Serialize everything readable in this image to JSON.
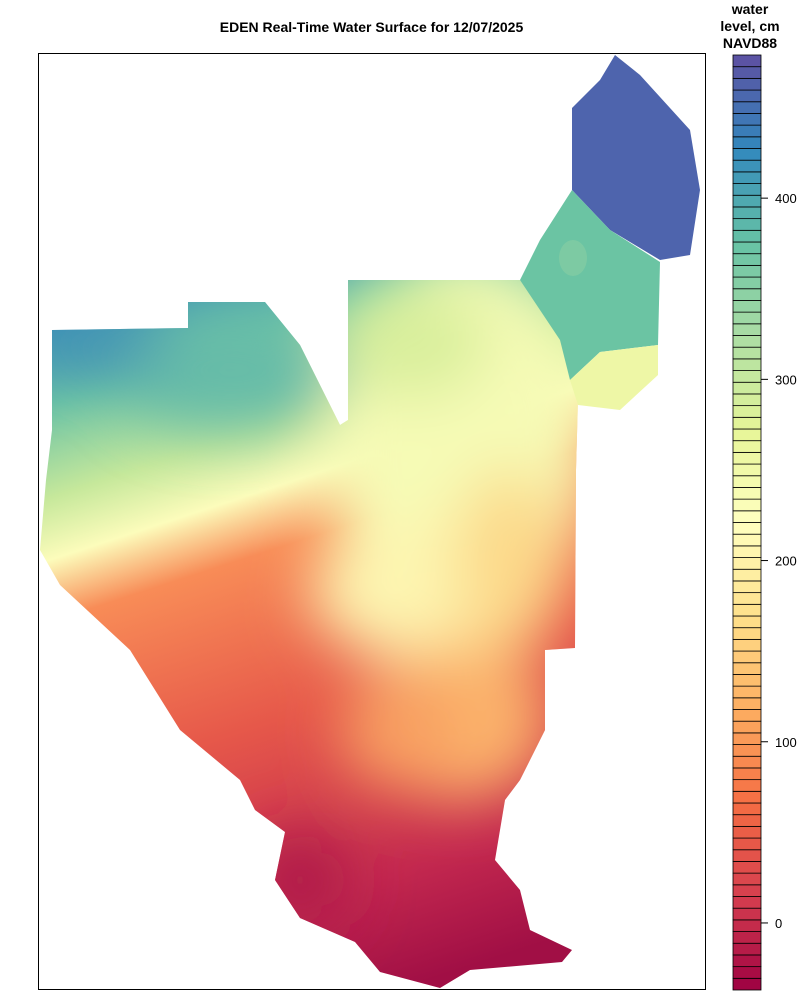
{
  "chart_data": {
    "type": "heatmap",
    "title": "EDEN Real-Time Water Surface for 12/07/2025",
    "colorbar": {
      "label_lines": [
        "water",
        "level, cm",
        "NAVD88"
      ],
      "ticks": [
        0,
        100,
        200,
        300,
        400
      ],
      "range": [
        -37,
        479
      ],
      "bands": 80,
      "palette": [
        "#9e0142",
        "#d53e4f",
        "#f46d43",
        "#fdae61",
        "#fee08b",
        "#ffffbf",
        "#e6f598",
        "#abdda4",
        "#66c2a5",
        "#3288bd",
        "#5e4fa2"
      ]
    },
    "regions": {
      "northeast": "#4e64ad",
      "north_central_east": "#6bc4a3",
      "main_north": "#e6f598",
      "main_south": "#c3284f"
    },
    "grid": false
  }
}
